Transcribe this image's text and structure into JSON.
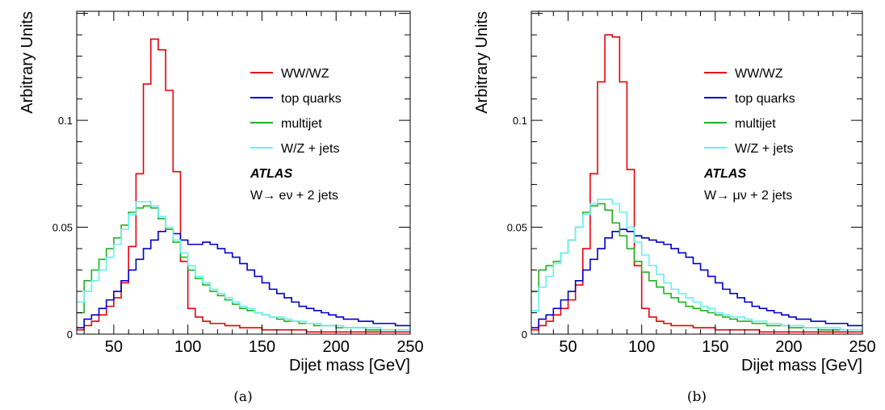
{
  "chart_data": [
    {
      "type": "line",
      "panel_caption": "(a)",
      "xlabel": "Dijet mass [GeV]",
      "ylabel": "Arbitrary Units",
      "xlim": [
        25,
        250
      ],
      "ylim": [
        0,
        0.151
      ],
      "x_ticks": [
        50,
        100,
        150,
        200,
        250
      ],
      "y_ticks": [
        {
          "value": 0,
          "label": "0"
        },
        {
          "value": 0.05,
          "label": "0.05"
        },
        {
          "value": 0.1,
          "label": "0.1"
        }
      ],
      "legend_placement": "top-right",
      "annotation_title": "ATLAS",
      "annotation_channel": "W→ eν + 2 jets",
      "bin_edges": [
        25,
        30,
        35,
        40,
        45,
        50,
        55,
        60,
        65,
        70,
        75,
        80,
        85,
        90,
        95,
        100,
        105,
        110,
        115,
        120,
        125,
        130,
        135,
        140,
        145,
        150,
        155,
        160,
        165,
        170,
        175,
        180,
        185,
        190,
        195,
        200,
        205,
        210,
        215,
        220,
        225,
        230,
        235,
        240,
        245,
        250
      ],
      "series": [
        {
          "name": "WW/WZ",
          "color": "#e8000b",
          "values": [
            0.002,
            0.004,
            0.006,
            0.009,
            0.013,
            0.017,
            0.024,
            0.041,
            0.075,
            0.117,
            0.138,
            0.133,
            0.114,
            0.076,
            0.034,
            0.012,
            0.008,
            0.006,
            0.005,
            0.005,
            0.004,
            0.004,
            0.003,
            0.003,
            0.003,
            0.002,
            0.002,
            0.002,
            0.002,
            0.002,
            0.002,
            0.001,
            0.001,
            0.001,
            0.001,
            0.001,
            0.001,
            0.001,
            0.001,
            0.001,
            0.001,
            0.001,
            0.001,
            0.001,
            0.001
          ]
        },
        {
          "name": "top quarks",
          "color": "#0000c8",
          "values": [
            0.003,
            0.007,
            0.009,
            0.012,
            0.016,
            0.02,
            0.025,
            0.03,
            0.035,
            0.04,
            0.044,
            0.048,
            0.049,
            0.047,
            0.044,
            0.042,
            0.042,
            0.043,
            0.042,
            0.04,
            0.038,
            0.036,
            0.033,
            0.03,
            0.027,
            0.024,
            0.021,
            0.019,
            0.017,
            0.015,
            0.013,
            0.012,
            0.011,
            0.01,
            0.009,
            0.008,
            0.007,
            0.007,
            0.006,
            0.006,
            0.005,
            0.005,
            0.005,
            0.004,
            0.004
          ]
        },
        {
          "name": "multijet",
          "color": "#22b022",
          "values": [
            0.01,
            0.025,
            0.03,
            0.035,
            0.04,
            0.045,
            0.051,
            0.057,
            0.059,
            0.06,
            0.059,
            0.054,
            0.049,
            0.043,
            0.036,
            0.03,
            0.026,
            0.023,
            0.02,
            0.018,
            0.016,
            0.014,
            0.012,
            0.011,
            0.01,
            0.009,
            0.008,
            0.007,
            0.006,
            0.006,
            0.005,
            0.005,
            0.004,
            0.004,
            0.004,
            0.003,
            0.003,
            0.003,
            0.003,
            0.002,
            0.002,
            0.002,
            0.002,
            0.002,
            0.002
          ]
        },
        {
          "name": "W/Z + jets",
          "color": "#66f0f0",
          "values": [
            0.015,
            0.02,
            0.025,
            0.03,
            0.036,
            0.042,
            0.049,
            0.056,
            0.062,
            0.062,
            0.06,
            0.055,
            0.05,
            0.044,
            0.038,
            0.032,
            0.027,
            0.024,
            0.021,
            0.019,
            0.017,
            0.015,
            0.013,
            0.012,
            0.01,
            0.009,
            0.008,
            0.008,
            0.007,
            0.006,
            0.006,
            0.005,
            0.005,
            0.004,
            0.004,
            0.004,
            0.003,
            0.003,
            0.003,
            0.003,
            0.003,
            0.002,
            0.002,
            0.002,
            0.002
          ]
        }
      ]
    },
    {
      "type": "line",
      "panel_caption": "(b)",
      "xlabel": "Dijet mass [GeV]",
      "ylabel": "Arbitrary Units",
      "xlim": [
        25,
        250
      ],
      "ylim": [
        0,
        0.151
      ],
      "x_ticks": [
        50,
        100,
        150,
        200,
        250
      ],
      "y_ticks": [
        {
          "value": 0,
          "label": "0"
        },
        {
          "value": 0.05,
          "label": "0.05"
        },
        {
          "value": 0.1,
          "label": "0.1"
        }
      ],
      "legend_placement": "top-right",
      "annotation_title": "ATLAS",
      "annotation_channel": "W→ μν + 2 jets",
      "bin_edges": [
        25,
        30,
        35,
        40,
        45,
        50,
        55,
        60,
        65,
        70,
        75,
        80,
        85,
        90,
        95,
        100,
        105,
        110,
        115,
        120,
        125,
        130,
        135,
        140,
        145,
        150,
        155,
        160,
        165,
        170,
        175,
        180,
        185,
        190,
        195,
        200,
        205,
        210,
        215,
        220,
        225,
        230,
        235,
        240,
        245,
        250
      ],
      "series": [
        {
          "name": "WW/WZ",
          "color": "#e8000b",
          "values": [
            0.002,
            0.004,
            0.006,
            0.009,
            0.012,
            0.016,
            0.023,
            0.04,
            0.075,
            0.118,
            0.14,
            0.139,
            0.118,
            0.077,
            0.032,
            0.012,
            0.008,
            0.006,
            0.005,
            0.004,
            0.004,
            0.004,
            0.003,
            0.003,
            0.003,
            0.002,
            0.002,
            0.002,
            0.002,
            0.002,
            0.002,
            0.001,
            0.001,
            0.001,
            0.001,
            0.001,
            0.001,
            0.001,
            0.001,
            0.001,
            0.001,
            0.001,
            0.001,
            0.001,
            0.001
          ]
        },
        {
          "name": "top quarks",
          "color": "#0000c8",
          "values": [
            0.003,
            0.007,
            0.009,
            0.012,
            0.016,
            0.02,
            0.025,
            0.03,
            0.035,
            0.04,
            0.045,
            0.048,
            0.049,
            0.048,
            0.046,
            0.045,
            0.044,
            0.043,
            0.042,
            0.04,
            0.038,
            0.036,
            0.033,
            0.03,
            0.027,
            0.024,
            0.021,
            0.019,
            0.017,
            0.015,
            0.013,
            0.012,
            0.011,
            0.01,
            0.009,
            0.008,
            0.007,
            0.007,
            0.006,
            0.006,
            0.005,
            0.005,
            0.005,
            0.004,
            0.004
          ]
        },
        {
          "name": "multijet",
          "color": "#22b022",
          "values": [
            0.02,
            0.03,
            0.032,
            0.034,
            0.038,
            0.044,
            0.05,
            0.057,
            0.06,
            0.061,
            0.058,
            0.052,
            0.046,
            0.04,
            0.034,
            0.029,
            0.025,
            0.022,
            0.019,
            0.017,
            0.015,
            0.013,
            0.012,
            0.011,
            0.01,
            0.009,
            0.008,
            0.007,
            0.006,
            0.006,
            0.005,
            0.005,
            0.004,
            0.004,
            0.004,
            0.003,
            0.003,
            0.003,
            0.003,
            0.002,
            0.002,
            0.002,
            0.002,
            0.002,
            0.002
          ]
        },
        {
          "name": "W/Z + jets",
          "color": "#66f0f0",
          "values": [
            0.011,
            0.022,
            0.027,
            0.033,
            0.038,
            0.044,
            0.05,
            0.056,
            0.061,
            0.063,
            0.063,
            0.061,
            0.057,
            0.05,
            0.043,
            0.037,
            0.032,
            0.028,
            0.024,
            0.021,
            0.019,
            0.017,
            0.015,
            0.013,
            0.012,
            0.01,
            0.009,
            0.008,
            0.008,
            0.007,
            0.006,
            0.006,
            0.005,
            0.005,
            0.004,
            0.004,
            0.004,
            0.003,
            0.003,
            0.003,
            0.003,
            0.003,
            0.002,
            0.002,
            0.002
          ]
        }
      ]
    }
  ]
}
